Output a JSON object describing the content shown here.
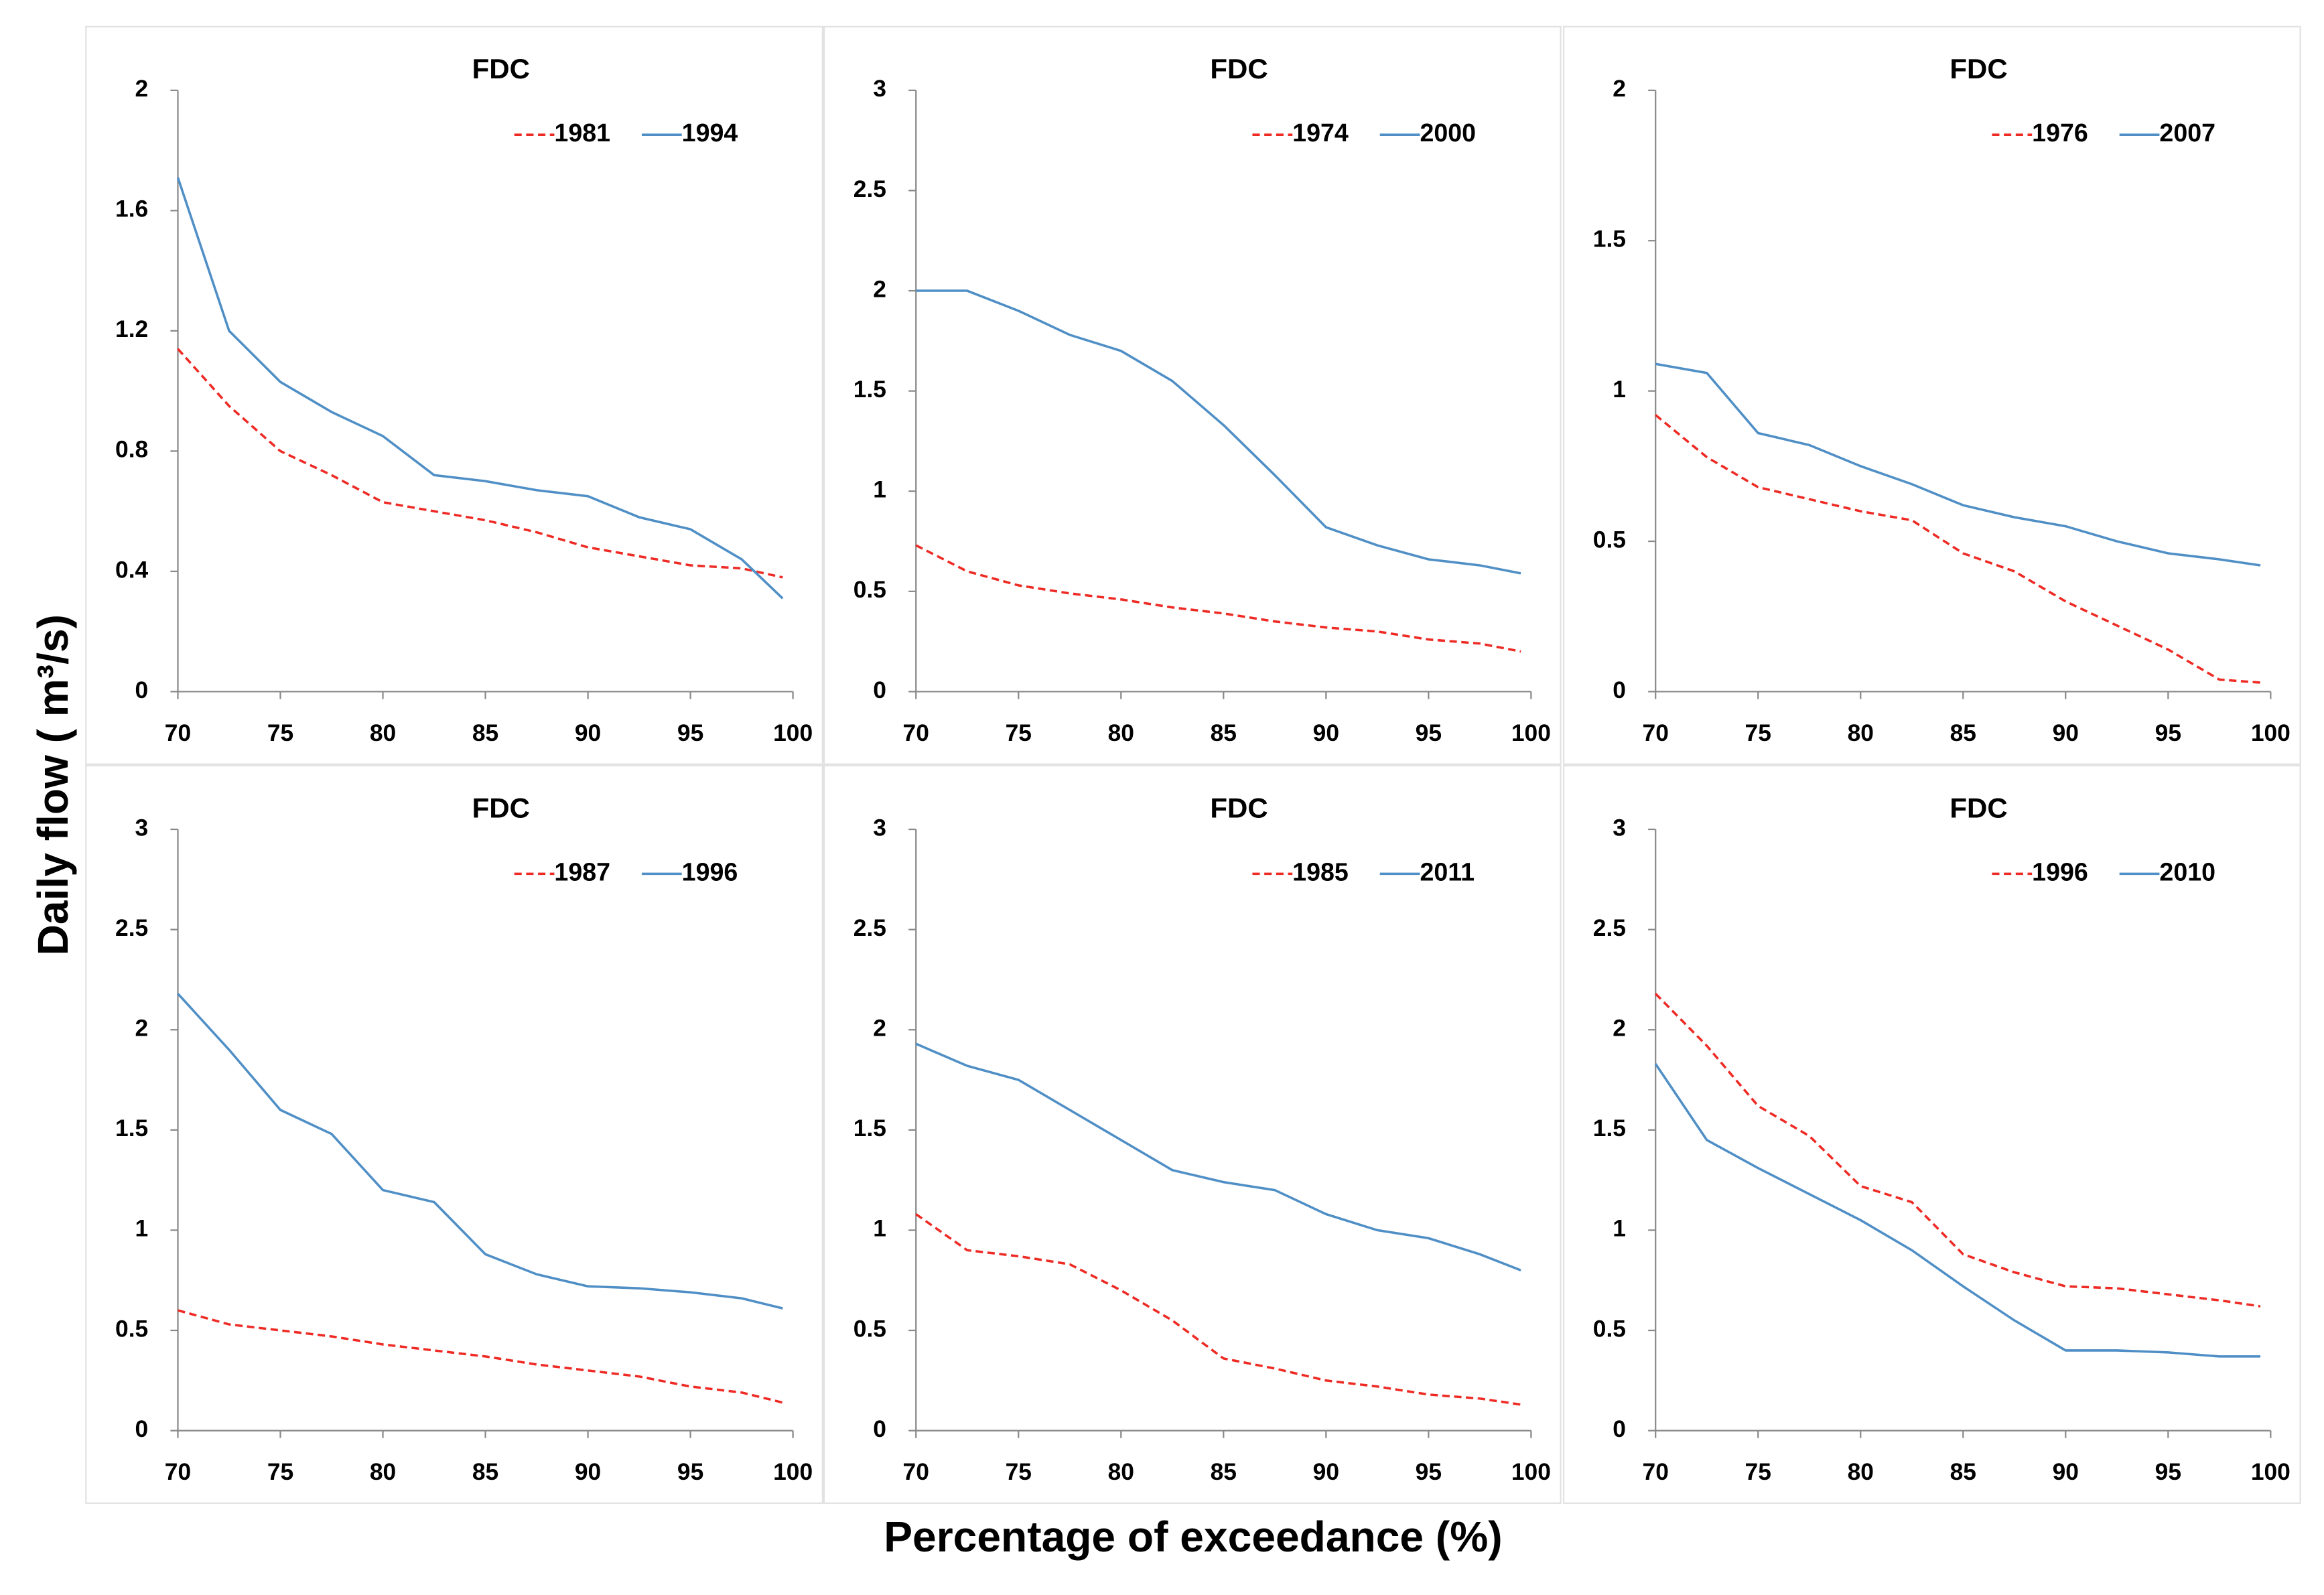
{
  "axis_labels": {
    "x": "Percentage of exceedance (%)",
    "y": "Daily flow ( m³/s)"
  },
  "chart_data": [
    {
      "type": "line",
      "title": "FDC",
      "x": [
        70,
        72.5,
        75,
        77.5,
        80,
        82.5,
        85,
        87.5,
        90,
        92.5,
        95,
        97.5,
        99.5
      ],
      "series": [
        {
          "name": "1981",
          "color": "#ee2a24",
          "style": "dashed",
          "values": [
            1.14,
            0.95,
            0.8,
            0.72,
            0.63,
            0.6,
            0.57,
            0.53,
            0.48,
            0.45,
            0.42,
            0.41,
            0.38
          ]
        },
        {
          "name": "1994",
          "color": "#4f8fc6",
          "style": "solid",
          "values": [
            1.71,
            1.2,
            1.03,
            0.93,
            0.85,
            0.72,
            0.7,
            0.67,
            0.65,
            0.58,
            0.54,
            0.44,
            0.31
          ]
        }
      ],
      "xlim": [
        70,
        100
      ],
      "xticks": [
        70,
        75,
        80,
        85,
        90,
        95,
        100
      ],
      "ylim": [
        0,
        2
      ],
      "yticks": [
        0,
        0.4,
        0.8,
        1.2,
        1.6,
        2
      ],
      "grid": false
    },
    {
      "type": "line",
      "title": "FDC",
      "x": [
        70,
        72.5,
        75,
        77.5,
        80,
        82.5,
        85,
        87.5,
        90,
        92.5,
        95,
        97.5,
        99.5
      ],
      "series": [
        {
          "name": "1974",
          "color": "#ee2a24",
          "style": "dashed",
          "values": [
            0.73,
            0.6,
            0.53,
            0.49,
            0.46,
            0.42,
            0.39,
            0.35,
            0.32,
            0.3,
            0.26,
            0.24,
            0.2
          ]
        },
        {
          "name": "2000",
          "color": "#4f8fc6",
          "style": "solid",
          "values": [
            2.0,
            2.0,
            1.9,
            1.78,
            1.7,
            1.55,
            1.33,
            1.08,
            0.82,
            0.73,
            0.66,
            0.63,
            0.59
          ]
        }
      ],
      "xlim": [
        70,
        100
      ],
      "xticks": [
        70,
        75,
        80,
        85,
        90,
        95,
        100
      ],
      "ylim": [
        0,
        3
      ],
      "yticks": [
        0,
        0.5,
        1,
        1.5,
        2,
        2.5,
        3
      ],
      "grid": false
    },
    {
      "type": "line",
      "title": "FDC",
      "x": [
        70,
        72.5,
        75,
        77.5,
        80,
        82.5,
        85,
        87.5,
        90,
        92.5,
        95,
        97.5,
        99.5
      ],
      "series": [
        {
          "name": "1976",
          "color": "#ee2a24",
          "style": "dashed",
          "values": [
            0.92,
            0.78,
            0.68,
            0.64,
            0.6,
            0.57,
            0.46,
            0.4,
            0.3,
            0.22,
            0.14,
            0.04,
            0.03
          ]
        },
        {
          "name": "2007",
          "color": "#4f8fc6",
          "style": "solid",
          "values": [
            1.09,
            1.06,
            0.86,
            0.82,
            0.75,
            0.69,
            0.62,
            0.58,
            0.55,
            0.5,
            0.46,
            0.44,
            0.42
          ]
        }
      ],
      "xlim": [
        70,
        100
      ],
      "xticks": [
        70,
        75,
        80,
        85,
        90,
        95,
        100
      ],
      "ylim": [
        0,
        2
      ],
      "yticks": [
        0,
        0.5,
        1,
        1.5,
        2
      ],
      "grid": false
    },
    {
      "type": "line",
      "title": "FDC",
      "x": [
        70,
        72.5,
        75,
        77.5,
        80,
        82.5,
        85,
        87.5,
        90,
        92.5,
        95,
        97.5,
        99.5
      ],
      "series": [
        {
          "name": "1987",
          "color": "#ee2a24",
          "style": "dashed",
          "values": [
            0.6,
            0.53,
            0.5,
            0.47,
            0.43,
            0.4,
            0.37,
            0.33,
            0.3,
            0.27,
            0.22,
            0.19,
            0.14
          ]
        },
        {
          "name": "1996",
          "color": "#4f8fc6",
          "style": "solid",
          "values": [
            2.18,
            1.9,
            1.6,
            1.48,
            1.2,
            1.14,
            0.88,
            0.78,
            0.72,
            0.71,
            0.69,
            0.66,
            0.61
          ]
        }
      ],
      "xlim": [
        70,
        100
      ],
      "xticks": [
        70,
        75,
        80,
        85,
        90,
        95,
        100
      ],
      "ylim": [
        0,
        3
      ],
      "yticks": [
        0,
        0.5,
        1,
        1.5,
        2,
        2.5,
        3
      ],
      "grid": false
    },
    {
      "type": "line",
      "title": "FDC",
      "x": [
        70,
        72.5,
        75,
        77.5,
        80,
        82.5,
        85,
        87.5,
        90,
        92.5,
        95,
        97.5,
        99.5
      ],
      "series": [
        {
          "name": "1985",
          "color": "#ee2a24",
          "style": "dashed",
          "values": [
            1.08,
            0.9,
            0.87,
            0.83,
            0.7,
            0.55,
            0.36,
            0.31,
            0.25,
            0.22,
            0.18,
            0.16,
            0.13
          ]
        },
        {
          "name": "2011",
          "color": "#4f8fc6",
          "style": "solid",
          "values": [
            1.93,
            1.82,
            1.75,
            1.6,
            1.45,
            1.3,
            1.24,
            1.2,
            1.08,
            1.0,
            0.96,
            0.88,
            0.8
          ]
        }
      ],
      "xlim": [
        70,
        100
      ],
      "xticks": [
        70,
        75,
        80,
        85,
        90,
        95,
        100
      ],
      "ylim": [
        0,
        3
      ],
      "yticks": [
        0,
        0.5,
        1,
        1.5,
        2,
        2.5,
        3
      ],
      "grid": false
    },
    {
      "type": "line",
      "title": "FDC",
      "x": [
        70,
        72.5,
        75,
        77.5,
        80,
        82.5,
        85,
        87.5,
        90,
        92.5,
        95,
        97.5,
        99.5
      ],
      "series": [
        {
          "name": "1996",
          "color": "#ee2a24",
          "style": "dashed",
          "values": [
            2.18,
            1.92,
            1.62,
            1.47,
            1.22,
            1.14,
            0.88,
            0.79,
            0.72,
            0.71,
            0.68,
            0.65,
            0.62
          ]
        },
        {
          "name": "2010",
          "color": "#4f8fc6",
          "style": "solid",
          "values": [
            1.83,
            1.45,
            1.31,
            1.18,
            1.05,
            0.9,
            0.72,
            0.55,
            0.4,
            0.4,
            0.39,
            0.37,
            0.37
          ]
        }
      ],
      "xlim": [
        70,
        100
      ],
      "xticks": [
        70,
        75,
        80,
        85,
        90,
        95,
        100
      ],
      "ylim": [
        0,
        3
      ],
      "yticks": [
        0,
        0.5,
        1,
        1.5,
        2,
        2.5,
        3
      ],
      "grid": false
    }
  ]
}
